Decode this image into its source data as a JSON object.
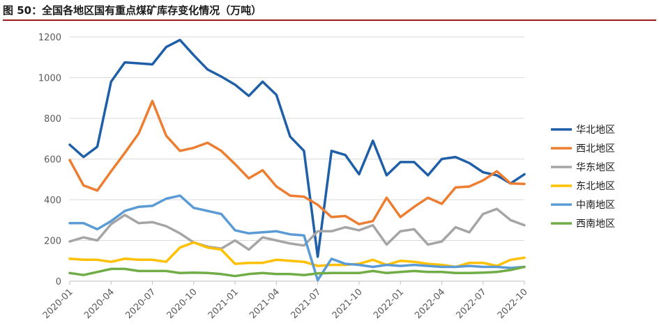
{
  "figure": {
    "title": "图 50：全国各地区国有重点煤矿库存变化情况（万吨）"
  },
  "chart_data": {
    "type": "line",
    "title": "图 50：全国各地区国有重点煤矿库存变化情况（万吨）",
    "xlabel": "",
    "ylabel": "",
    "ylim": [
      0,
      1200
    ],
    "yticks": [
      0,
      200,
      400,
      600,
      800,
      1000,
      1200
    ],
    "xtick_labels": [
      "2020-01",
      "2020-04",
      "2020-07",
      "2020-10",
      "2021-01",
      "2021-04",
      "2021-07",
      "2021-10",
      "2022-01",
      "2022-04",
      "2022-07",
      "2022-10"
    ],
    "x": [
      "2020-01",
      "2020-02",
      "2020-03",
      "2020-04",
      "2020-05",
      "2020-06",
      "2020-07",
      "2020-08",
      "2020-09",
      "2020-10",
      "2020-11",
      "2020-12",
      "2021-01",
      "2021-02",
      "2021-03",
      "2021-04",
      "2021-05",
      "2021-06",
      "2021-07",
      "2021-08",
      "2021-09",
      "2021-10",
      "2021-11",
      "2021-12",
      "2022-01",
      "2022-02",
      "2022-03",
      "2022-04",
      "2022-05",
      "2022-06",
      "2022-07",
      "2022-08",
      "2022-09",
      "2022-10"
    ],
    "grid": true,
    "legend_position": "right",
    "series": [
      {
        "name": "华北地区",
        "color": "#1F5FA8",
        "values": [
          670,
          610,
          660,
          980,
          1075,
          1070,
          1065,
          1150,
          1185,
          1110,
          1040,
          1005,
          965,
          910,
          980,
          915,
          710,
          640,
          120,
          640,
          620,
          525,
          690,
          520,
          585,
          585,
          520,
          600,
          610,
          580,
          535,
          520,
          480,
          525
        ]
      },
      {
        "name": "西北地区",
        "color": "#ED7D31",
        "values": [
          595,
          470,
          445,
          540,
          630,
          725,
          885,
          715,
          640,
          655,
          680,
          640,
          575,
          505,
          545,
          465,
          420,
          415,
          375,
          315,
          320,
          280,
          295,
          410,
          315,
          365,
          410,
          380,
          460,
          465,
          495,
          540,
          480,
          478
        ]
      },
      {
        "name": "华东地区",
        "color": "#A5A5A5",
        "values": [
          195,
          215,
          200,
          280,
          325,
          285,
          290,
          270,
          235,
          190,
          170,
          160,
          200,
          155,
          215,
          200,
          185,
          175,
          245,
          245,
          265,
          250,
          275,
          180,
          245,
          255,
          180,
          195,
          265,
          240,
          330,
          355,
          300,
          275
        ]
      },
      {
        "name": "东北地区",
        "color": "#FFC000",
        "values": [
          110,
          105,
          105,
          95,
          110,
          105,
          105,
          95,
          165,
          190,
          165,
          155,
          85,
          90,
          90,
          105,
          100,
          95,
          75,
          80,
          80,
          85,
          105,
          80,
          100,
          95,
          85,
          80,
          70,
          90,
          90,
          75,
          105,
          115
        ]
      },
      {
        "name": "中南地区",
        "color": "#5B9BD5",
        "values": [
          285,
          285,
          255,
          295,
          345,
          365,
          370,
          405,
          420,
          360,
          345,
          330,
          250,
          235,
          240,
          245,
          230,
          225,
          5,
          110,
          85,
          80,
          70,
          80,
          75,
          80,
          75,
          70,
          70,
          75,
          70,
          70,
          65,
          70
        ]
      },
      {
        "name": "西南地区",
        "color": "#70AD47",
        "values": [
          40,
          30,
          45,
          60,
          60,
          50,
          50,
          50,
          40,
          42,
          40,
          35,
          25,
          35,
          40,
          35,
          35,
          30,
          38,
          40,
          40,
          40,
          50,
          40,
          45,
          50,
          45,
          45,
          40,
          40,
          42,
          45,
          55,
          70
        ]
      }
    ]
  }
}
